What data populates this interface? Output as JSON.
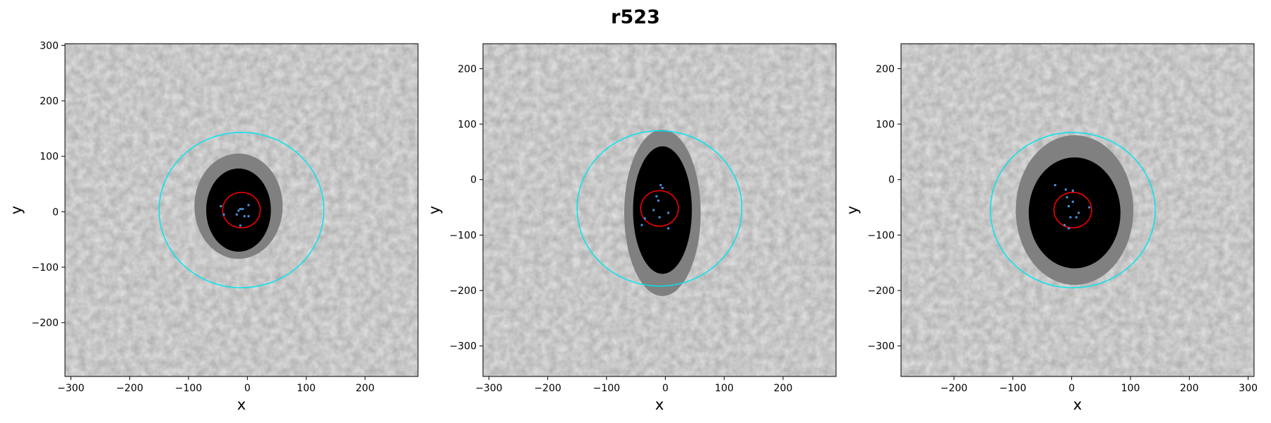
{
  "title": "r523",
  "colors": {
    "cyan_circle": "#00e5ee",
    "red_circle": "#ff0000",
    "points": "#4a90d9",
    "inner_region": "#000000",
    "outer_region": "#808080",
    "background": "#e4e4e4"
  },
  "chart_data": [
    {
      "type": "scatter",
      "xlabel": "x",
      "ylabel": "y",
      "xlim": [
        -310,
        290
      ],
      "ylim": [
        -297,
        303
      ],
      "xticks": [
        -300,
        -200,
        -100,
        0,
        100,
        200
      ],
      "yticks": [
        -200,
        -100,
        0,
        100,
        200,
        300
      ],
      "grid": false,
      "circles": [
        {
          "name": "outer",
          "cx": -10,
          "cy": 3,
          "r": 140,
          "color": "#00e5ee"
        },
        {
          "name": "inner",
          "cx": -10,
          "cy": 3,
          "r": 32,
          "color": "#ff0000"
        }
      ],
      "regions": [
        {
          "type": "outer",
          "cx": -15,
          "cy": 10,
          "rx": 75,
          "ry": 95
        },
        {
          "type": "inner",
          "cx": -15,
          "cy": 3,
          "rx": 55,
          "ry": 75
        }
      ],
      "points": [
        [
          -15,
          2
        ],
        [
          -12,
          5
        ],
        [
          -8,
          5
        ],
        [
          -18,
          -5
        ],
        [
          -5,
          -8
        ],
        [
          2,
          -8
        ],
        [
          2,
          12
        ],
        [
          -12,
          -25
        ],
        [
          -40,
          -5
        ],
        [
          -45,
          10
        ]
      ]
    },
    {
      "type": "scatter",
      "xlabel": "x",
      "ylabel": "y",
      "xlim": [
        -310,
        290
      ],
      "ylim": [
        -355,
        245
      ],
      "xticks": [
        -300,
        -200,
        -100,
        0,
        100,
        200
      ],
      "yticks": [
        -300,
        -200,
        -100,
        0,
        100,
        200
      ],
      "grid": false,
      "circles": [
        {
          "name": "outer",
          "cx": -10,
          "cy": -52,
          "r": 140,
          "color": "#00e5ee"
        },
        {
          "name": "inner",
          "cx": -10,
          "cy": -52,
          "r": 32,
          "color": "#ff0000"
        }
      ],
      "regions": [
        {
          "type": "outer",
          "cx": -5,
          "cy": -60,
          "rx": 65,
          "ry": 150
        },
        {
          "type": "inner",
          "cx": -5,
          "cy": -55,
          "rx": 50,
          "ry": 115
        }
      ],
      "points": [
        [
          -8,
          -10
        ],
        [
          -15,
          -30
        ],
        [
          -12,
          -38
        ],
        [
          -20,
          -55
        ],
        [
          -5,
          -15
        ],
        [
          5,
          -60
        ],
        [
          -10,
          -68
        ],
        [
          -35,
          -70
        ],
        [
          -40,
          -82
        ],
        [
          5,
          -88
        ]
      ]
    },
    {
      "type": "scatter",
      "xlabel": "x",
      "ylabel": "y",
      "xlim": [
        -290,
        310
      ],
      "ylim": [
        -355,
        245
      ],
      "xticks": [
        -200,
        -100,
        0,
        100,
        200,
        300
      ],
      "yticks": [
        -300,
        -200,
        -100,
        0,
        100,
        200
      ],
      "grid": false,
      "circles": [
        {
          "name": "outer",
          "cx": 2,
          "cy": -55,
          "r": 140,
          "color": "#00e5ee"
        },
        {
          "name": "inner",
          "cx": 2,
          "cy": -55,
          "r": 32,
          "color": "#ff0000"
        }
      ],
      "regions": [
        {
          "type": "outer",
          "cx": 5,
          "cy": -55,
          "rx": 100,
          "ry": 135
        },
        {
          "type": "inner",
          "cx": 5,
          "cy": -60,
          "rx": 78,
          "ry": 100
        }
      ],
      "points": [
        [
          -28,
          -10
        ],
        [
          -10,
          -18
        ],
        [
          2,
          -20
        ],
        [
          -8,
          -32
        ],
        [
          -5,
          -48
        ],
        [
          2,
          -40
        ],
        [
          12,
          -60
        ],
        [
          -2,
          -68
        ],
        [
          8,
          -68
        ],
        [
          -12,
          -82
        ],
        [
          -5,
          -88
        ],
        [
          30,
          -50
        ]
      ]
    }
  ]
}
